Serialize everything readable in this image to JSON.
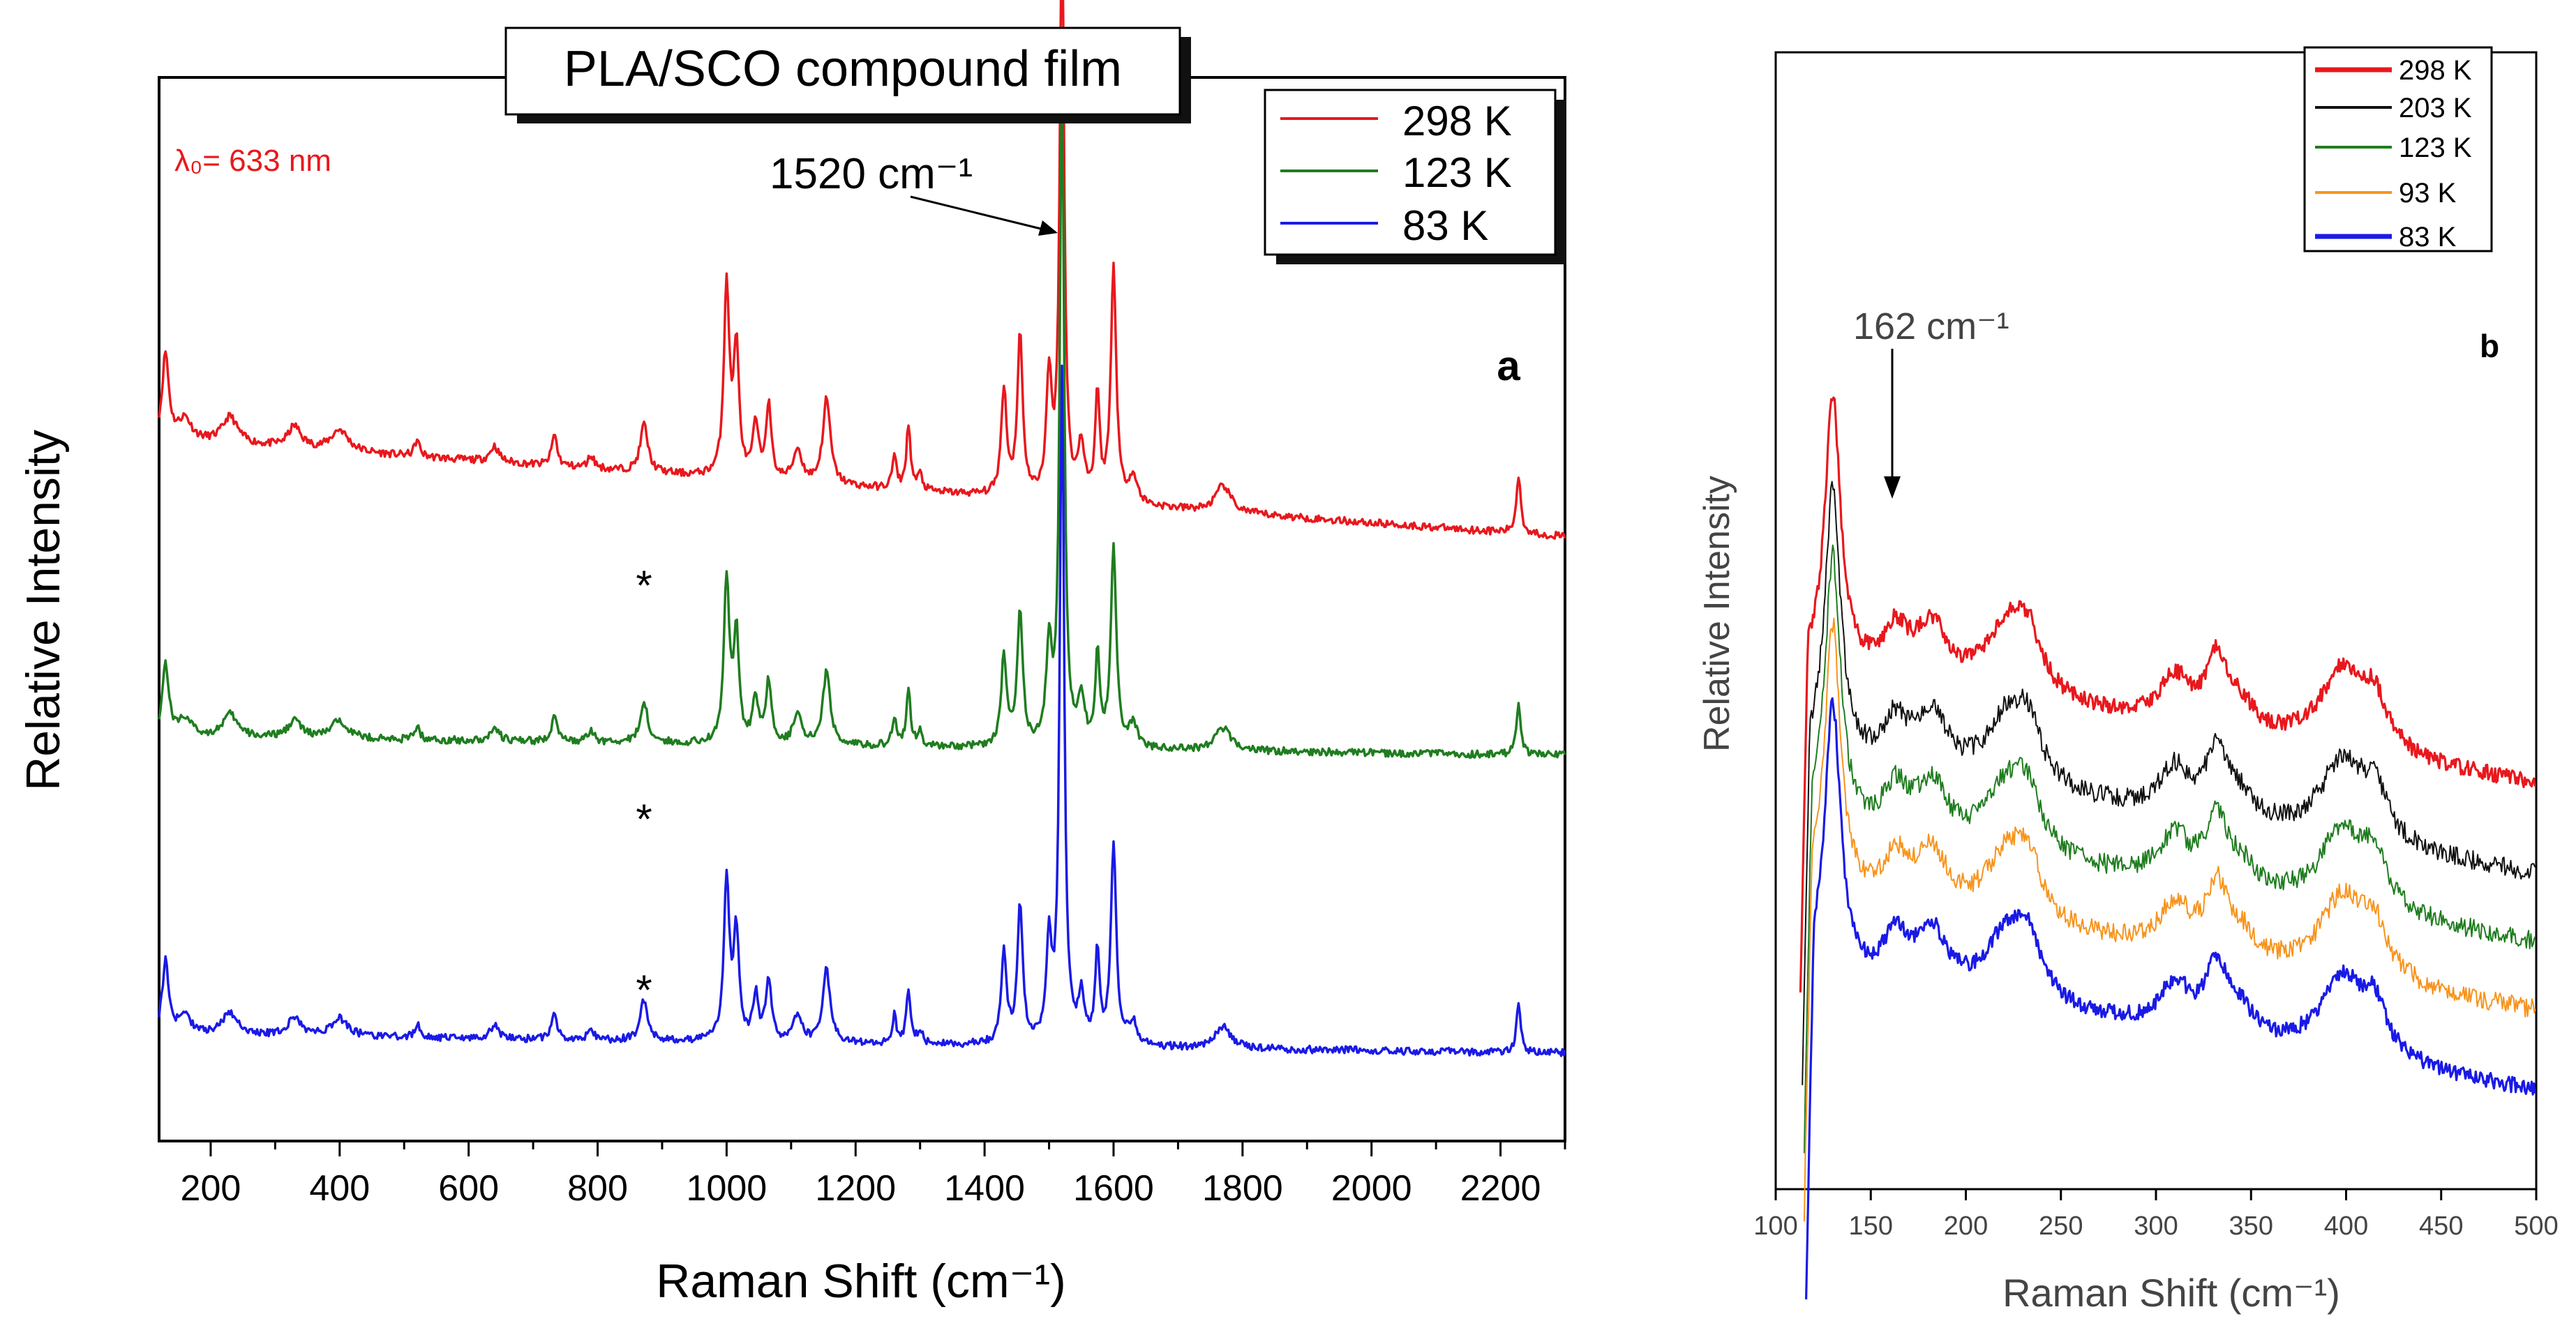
{
  "colors": {
    "red": "#e8181d",
    "green": "#1f7d1f",
    "blue": "#1a1ae6",
    "black": "#111111",
    "orange": "#f7941d"
  },
  "chart_data": [
    {
      "id": "a",
      "type": "line",
      "panel_label": "a",
      "title": "PLA/SCO compound film",
      "annotation_wavelength": "λ₀= 633 nm",
      "peak_annotation": "1520 cm⁻¹",
      "peak_x": 1520,
      "asterisk": "*",
      "asterisk_x": 872,
      "xlabel": "Raman Shift (cm⁻¹)",
      "ylabel": "Relative Intensity",
      "xlim": [
        120,
        2300
      ],
      "ylim": [
        0,
        100
      ],
      "xticks": [
        200,
        400,
        600,
        800,
        1000,
        1200,
        1400,
        1600,
        1800,
        2000,
        2200
      ],
      "legend": [
        "298 K",
        "123 K",
        "83 K"
      ],
      "series": [
        {
          "name": "298 K",
          "color": "red",
          "offset": 66,
          "slope": 0.0042,
          "base_peak_scale": 1.0
        },
        {
          "name": "123 K",
          "color": "green",
          "offset": 38,
          "slope": 0.0008,
          "base_peak_scale": 0.85
        },
        {
          "name": "83 K",
          "color": "blue",
          "offset": 10,
          "slope": 0.0008,
          "base_peak_scale": 0.85
        }
      ],
      "peaks": [
        [
          130,
          8,
          6
        ],
        [
          160,
          2,
          12
        ],
        [
          230,
          2.5,
          14
        ],
        [
          330,
          2,
          12
        ],
        [
          400,
          2,
          16
        ],
        [
          520,
          1.5,
          5
        ],
        [
          640,
          1.5,
          8
        ],
        [
          733,
          3,
          5
        ],
        [
          790,
          1.2,
          6
        ],
        [
          872,
          4.5,
          7
        ],
        [
          1000,
          18,
          5
        ],
        [
          1015,
          12,
          5
        ],
        [
          1045,
          5,
          5
        ],
        [
          1065,
          7,
          5
        ],
        [
          1110,
          3,
          8
        ],
        [
          1155,
          8,
          7
        ],
        [
          1260,
          3,
          4
        ],
        [
          1282,
          6,
          4
        ],
        [
          1300,
          1.5,
          4
        ],
        [
          1430,
          10,
          5
        ],
        [
          1455,
          15,
          5
        ],
        [
          1500,
          11,
          5
        ],
        [
          1520,
          55,
          4
        ],
        [
          1550,
          5,
          6
        ],
        [
          1575,
          10,
          4
        ],
        [
          1600,
          22,
          5
        ],
        [
          1630,
          2.5,
          8
        ],
        [
          1770,
          2.5,
          14
        ],
        [
          2228,
          5.5,
          4
        ]
      ]
    },
    {
      "id": "b",
      "type": "line",
      "panel_label": "b",
      "peak_annotation": "162 cm⁻¹",
      "peak_x": 162,
      "xlabel": "Raman Shift (cm⁻¹)",
      "ylabel": "Relative Intensity",
      "xlim": [
        100,
        500
      ],
      "ylim": [
        0,
        100
      ],
      "xticks": [
        100,
        150,
        200,
        250,
        300,
        350,
        400,
        450,
        500
      ],
      "legend": [
        "298 K",
        "203 K",
        "123 K",
        "93 K",
        "83 K"
      ],
      "series": [
        {
          "name": "298 K",
          "color": "red",
          "x_start": 113,
          "offset": 32,
          "line": 3.2
        },
        {
          "name": "203 K",
          "color": "black",
          "x_start": 114,
          "offset": 24,
          "line": 2
        },
        {
          "name": "123 K",
          "color": "green",
          "x_start": 115,
          "offset": 18,
          "line": 2
        },
        {
          "name": "93 K",
          "color": "orange",
          "x_start": 115,
          "offset": 12,
          "line": 2
        },
        {
          "name": "83 K",
          "color": "blue",
          "x_start": 116,
          "offset": 5,
          "line": 3.2
        }
      ]
    }
  ]
}
